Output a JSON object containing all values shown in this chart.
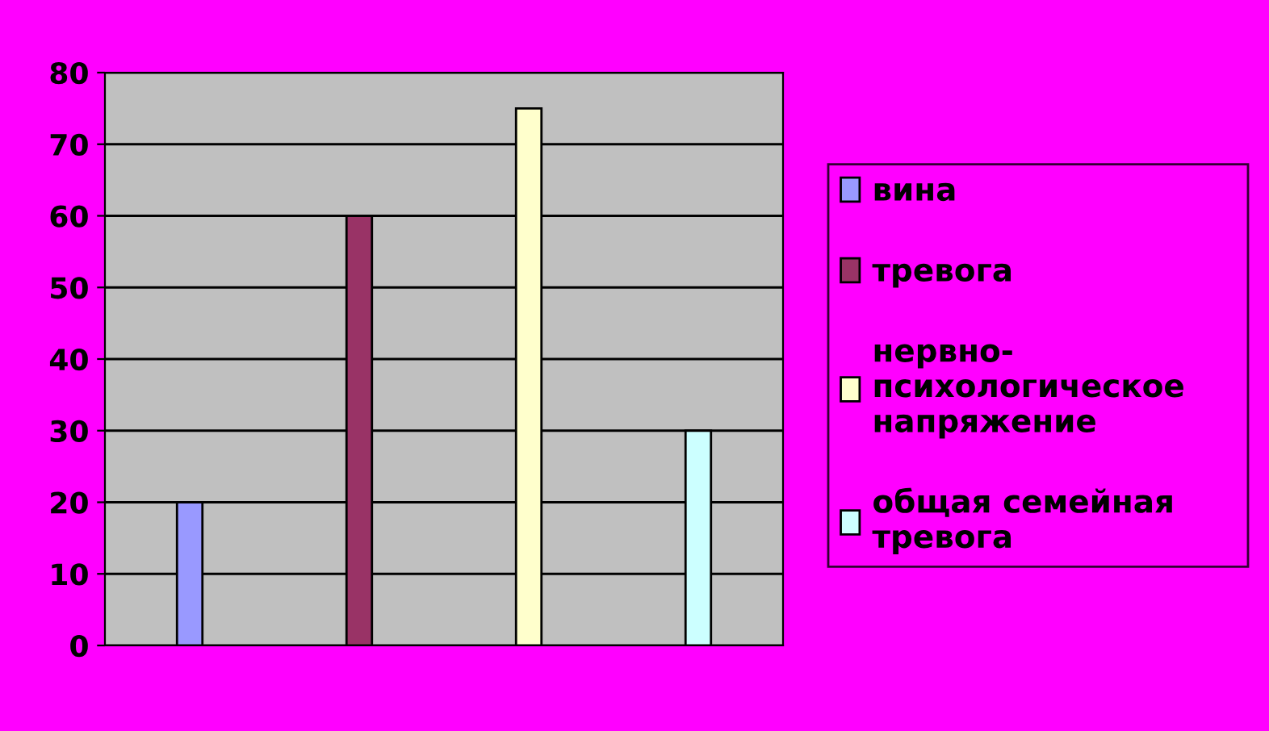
{
  "chart_data": {
    "type": "bar",
    "categories": [
      null,
      null,
      null,
      null
    ],
    "series": [
      {
        "name": "вина",
        "color": "#9999ff",
        "values": [
          20,
          null,
          null,
          null
        ]
      },
      {
        "name": "тревога",
        "color": "#993366",
        "values": [
          null,
          60,
          null,
          null
        ]
      },
      {
        "name": "нервно-\nпсихологическое\nнапряжение",
        "color": "#ffffcc",
        "values": [
          null,
          null,
          75,
          null
        ]
      },
      {
        "name": "общая семейная\nтревога",
        "color": "#ccffff",
        "values": [
          null,
          null,
          null,
          30
        ]
      }
    ],
    "ylim": [
      0,
      80
    ],
    "yticks": [
      0,
      10,
      20,
      30,
      40,
      50,
      60,
      70,
      80
    ],
    "grid": "y",
    "legend": "right",
    "tick_labels": "y"
  }
}
